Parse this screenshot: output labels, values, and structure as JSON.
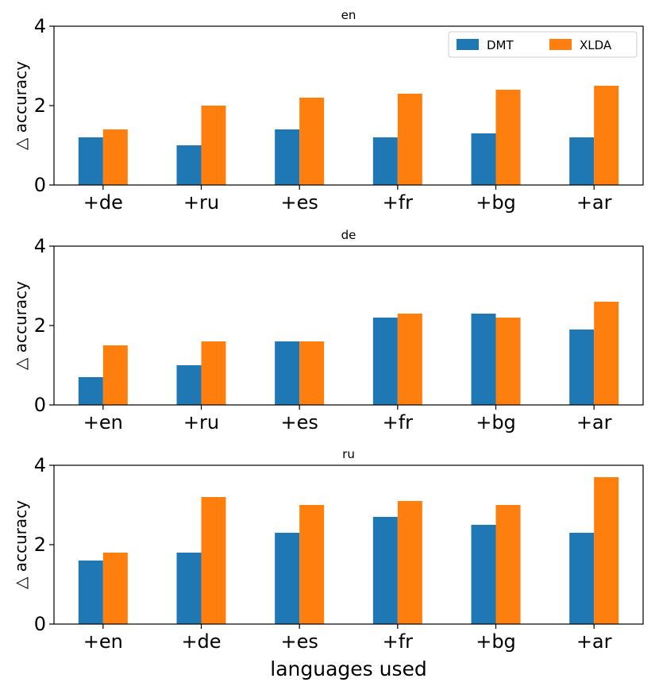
{
  "chart_data": [
    {
      "type": "bar",
      "title": "en",
      "categories": [
        "+de",
        "+ru",
        "+es",
        "+fr",
        "+bg",
        "+ar"
      ],
      "series": [
        {
          "name": "DMT",
          "values": [
            1.2,
            1.0,
            1.4,
            1.2,
            1.3,
            1.2
          ]
        },
        {
          "name": "XLDA",
          "values": [
            1.4,
            2.0,
            2.2,
            2.3,
            2.4,
            2.5
          ]
        }
      ],
      "ylabel": "△ accuracy",
      "xlabel": "",
      "ylim": [
        0,
        4
      ],
      "yticks": [
        "0",
        "2",
        "4"
      ],
      "legend": "top-right"
    },
    {
      "type": "bar",
      "title": "de",
      "categories": [
        "+en",
        "+ru",
        "+es",
        "+fr",
        "+bg",
        "+ar"
      ],
      "series": [
        {
          "name": "DMT",
          "values": [
            0.7,
            1.0,
            1.6,
            2.2,
            2.3,
            1.9
          ]
        },
        {
          "name": "XLDA",
          "values": [
            1.5,
            1.6,
            1.6,
            2.3,
            2.2,
            2.6
          ]
        }
      ],
      "ylabel": "△ accuracy",
      "xlabel": "",
      "ylim": [
        0,
        4
      ],
      "yticks": [
        "0",
        "2",
        "4"
      ]
    },
    {
      "type": "bar",
      "title": "ru",
      "categories": [
        "+en",
        "+de",
        "+es",
        "+fr",
        "+bg",
        "+ar"
      ],
      "series": [
        {
          "name": "DMT",
          "values": [
            1.6,
            1.8,
            2.3,
            2.7,
            2.5,
            2.3
          ]
        },
        {
          "name": "XLDA",
          "values": [
            1.8,
            3.2,
            3.0,
            3.1,
            3.0,
            3.7
          ]
        }
      ],
      "ylabel": "△ accuracy",
      "xlabel": "languages used",
      "ylim": [
        0,
        4
      ],
      "yticks": [
        "0",
        "2",
        "4"
      ]
    }
  ],
  "colors": {
    "DMT": "#1f77b4",
    "XLDA": "#ff7f0e"
  }
}
